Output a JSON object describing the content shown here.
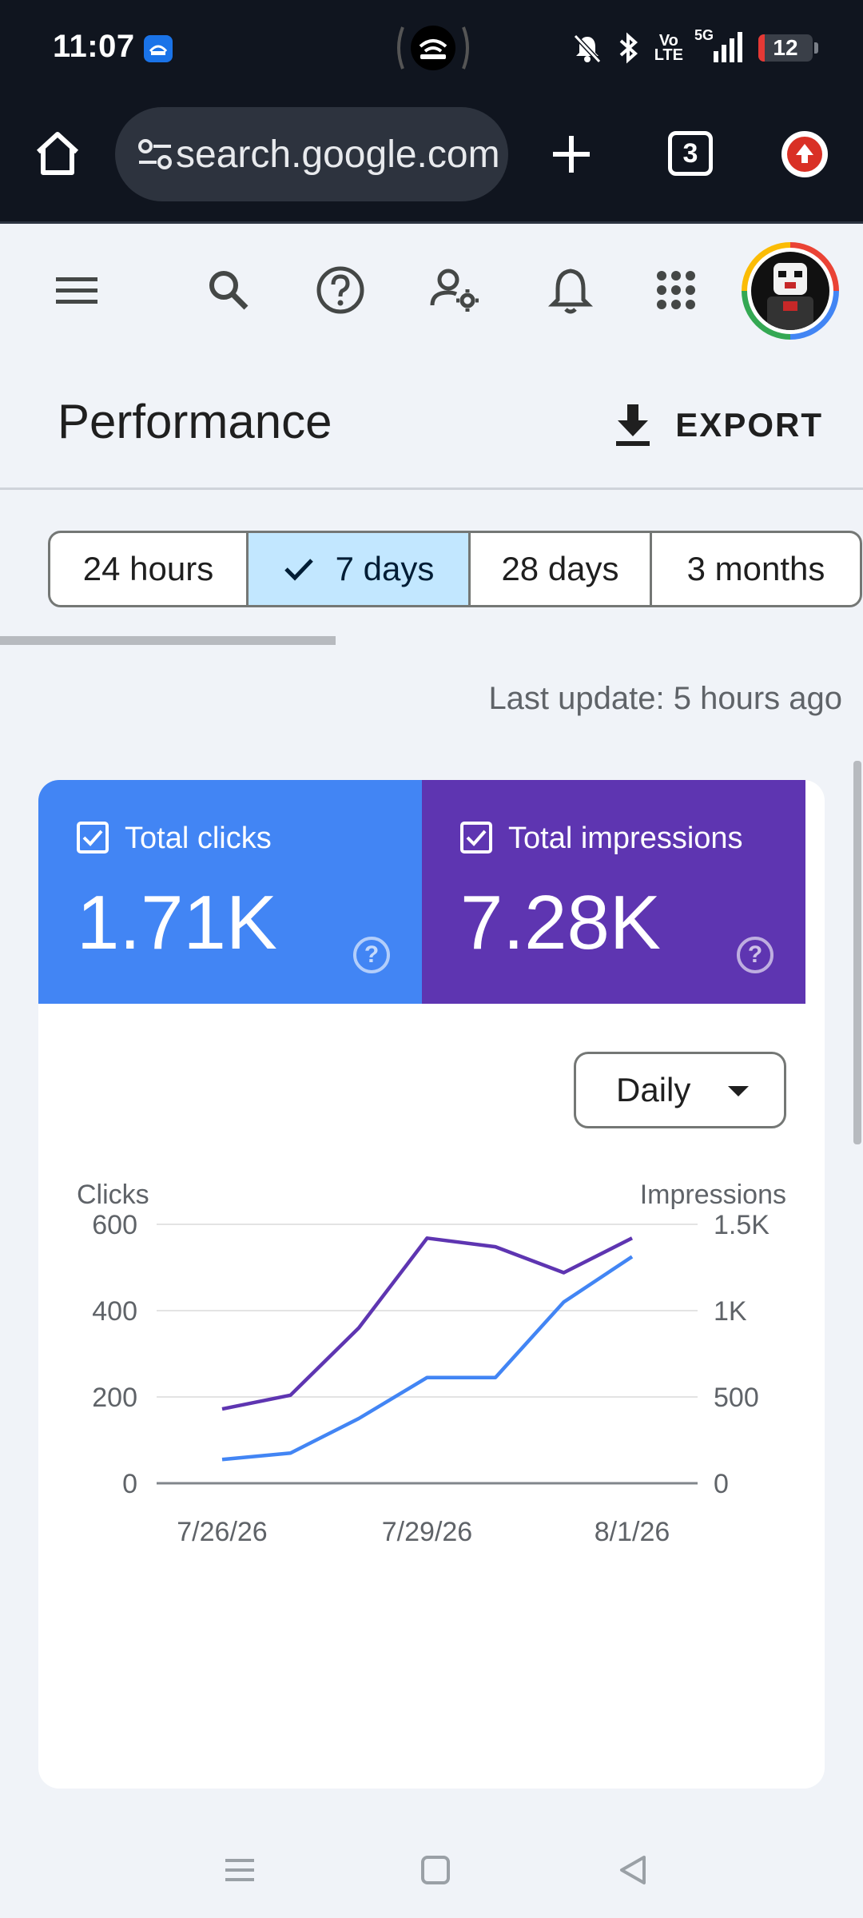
{
  "status_bar": {
    "time": "11:07",
    "network_label": "Vo\nLTE",
    "signal_label": "5G",
    "battery_level": "12",
    "battery_fraction": 0.12
  },
  "browser": {
    "url": "search.google.com",
    "tab_count": "3"
  },
  "app_bar": {
    "icons": [
      "menu-icon",
      "search-icon",
      "help-icon",
      "admin-settings-icon",
      "notifications-icon",
      "apps-icon"
    ]
  },
  "header": {
    "title": "Performance",
    "export_label": "EXPORT"
  },
  "date_ranges": {
    "items": [
      "24 hours",
      "7 days",
      "28 days",
      "3 months"
    ],
    "selected": "7 days"
  },
  "last_update": "Last update: 5 hours ago",
  "metrics": {
    "clicks": {
      "label": "Total clicks",
      "value": "1.71K",
      "color": "#4285f4"
    },
    "impressions": {
      "label": "Total impressions",
      "value": "7.28K",
      "color": "#5e35b1"
    }
  },
  "granularity": "Daily",
  "chart_data": {
    "type": "line",
    "x": [
      "7/26/26",
      "7/27/26",
      "7/28/26",
      "7/29/26",
      "7/30/26",
      "7/31/26",
      "8/1/26"
    ],
    "x_tick_labels": [
      "7/26/26",
      "7/29/26",
      "8/1/26"
    ],
    "left_axis_label": "Clicks",
    "right_axis_label": "Impressions",
    "left_ticks": [
      "0",
      "200",
      "400",
      "600"
    ],
    "right_ticks": [
      "0",
      "500",
      "1K",
      "1.5K"
    ],
    "ylim_left": [
      0,
      600
    ],
    "ylim_right": [
      0,
      1500
    ],
    "grid": true,
    "series": [
      {
        "name": "Clicks",
        "axis": "left",
        "color": "#4285f4",
        "values": [
          55,
          70,
          150,
          245,
          245,
          420,
          525
        ]
      },
      {
        "name": "Impressions",
        "axis": "right",
        "color": "#5e35b1",
        "values": [
          430,
          510,
          900,
          1420,
          1370,
          1220,
          1420
        ]
      }
    ]
  }
}
